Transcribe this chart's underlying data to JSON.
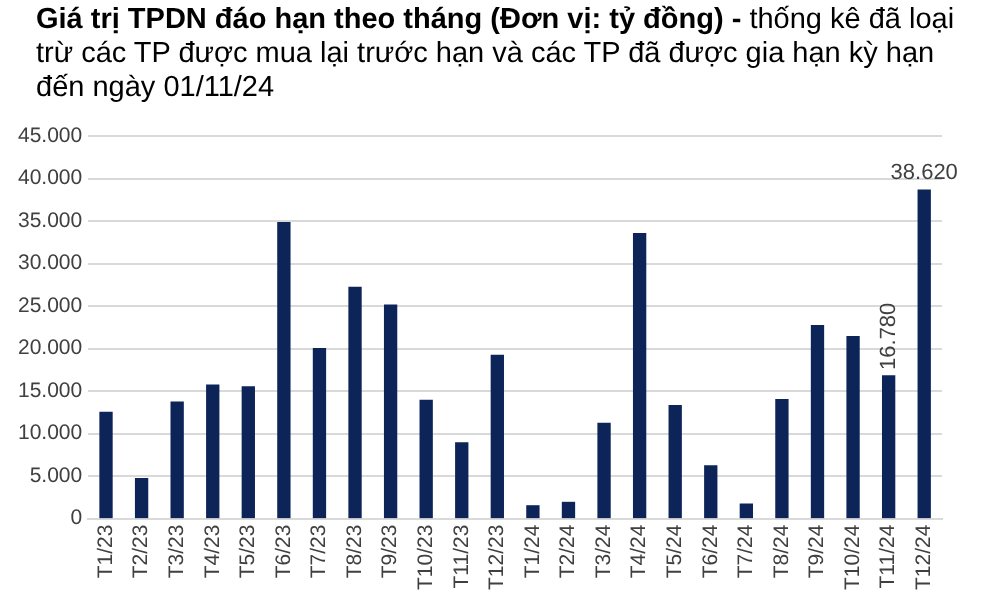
{
  "chart_data": {
    "type": "bar",
    "title": "Giá trị TPDN đáo hạn theo tháng (Đơn vị: tỷ đồng) -",
    "subtitle": "thống kê đã loại trừ các TP được mua lại trước hạn và các TP đã được gia hạn kỳ hạn đến ngày 01/11/24",
    "categories": [
      "T1/23",
      "T2/23",
      "T3/23",
      "T4/23",
      "T5/23",
      "T6/23",
      "T7/23",
      "T8/23",
      "T9/23",
      "T10/23",
      "T11/23",
      "T12/23",
      "T1/24",
      "T2/24",
      "T3/24",
      "T4/24",
      "T5/24",
      "T6/24",
      "T7/24",
      "T8/24",
      "T9/24",
      "T10/24",
      "T11/24",
      "T12/24"
    ],
    "values": [
      12500,
      4700,
      13700,
      15700,
      15500,
      34800,
      20000,
      27200,
      25100,
      13900,
      8900,
      19200,
      1500,
      1900,
      11200,
      33500,
      13300,
      6200,
      1700,
      14000,
      22700,
      21400,
      16780,
      38620
    ],
    "value_labels": [
      null,
      null,
      null,
      null,
      null,
      null,
      null,
      null,
      null,
      null,
      null,
      null,
      null,
      null,
      null,
      null,
      null,
      null,
      null,
      null,
      null,
      null,
      "16.780",
      "38.620"
    ],
    "color": "#0c2458",
    "ylim": [
      0,
      45000
    ],
    "yticks": [
      {
        "value": 0,
        "label": "0"
      },
      {
        "value": 5000,
        "label": "5.000"
      },
      {
        "value": 10000,
        "label": "10.000"
      },
      {
        "value": 15000,
        "label": "15.000"
      },
      {
        "value": 20000,
        "label": "20.000"
      },
      {
        "value": 25000,
        "label": "25.000"
      },
      {
        "value": 30000,
        "label": "30.000"
      },
      {
        "value": 35000,
        "label": "35.000"
      },
      {
        "value": 40000,
        "label": "40.000"
      },
      {
        "value": 45000,
        "label": "45.000"
      }
    ],
    "grid": "y",
    "legend": false
  }
}
